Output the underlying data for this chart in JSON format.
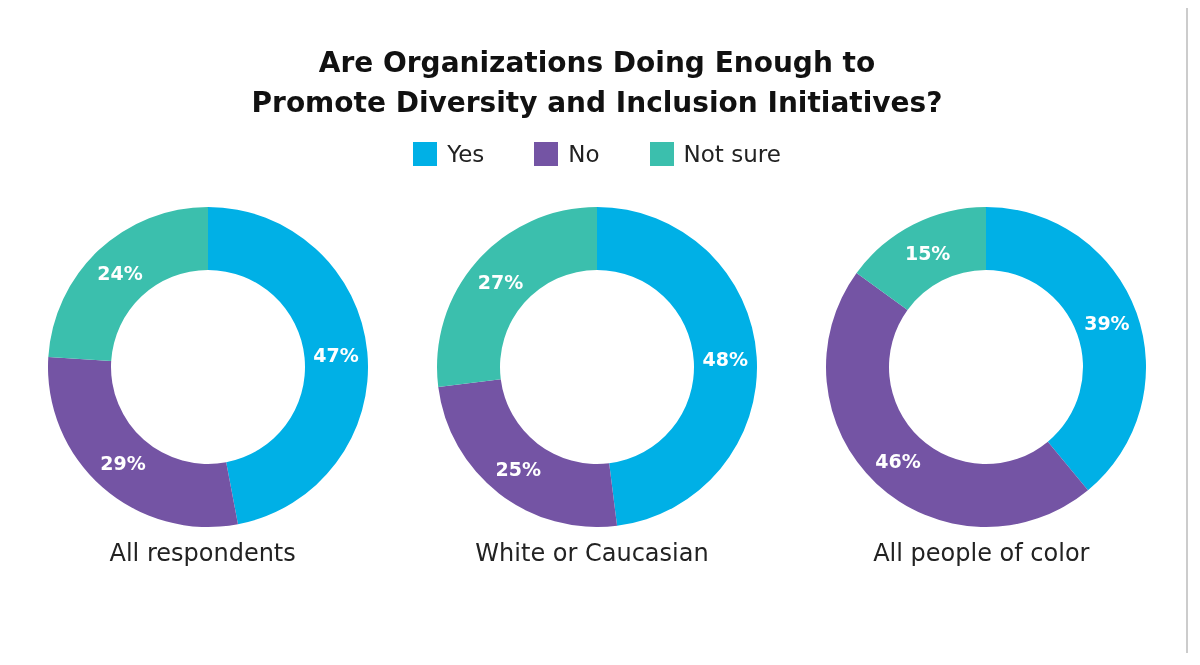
{
  "chart_data": [
    {
      "type": "donut",
      "title": "Are Organizations Doing Enough to\nPromote Diversity and Inclusion Initiatives?",
      "legend": "top",
      "categories": [
        "Yes",
        "No",
        "Not sure"
      ],
      "values": [
        47,
        29,
        24
      ],
      "value_labels": [
        "47%",
        "29%",
        "24%"
      ],
      "colors": [
        "#00b0e6",
        "#7454a4",
        "#3bbfad"
      ],
      "xlabel": "All respondents"
    },
    {
      "type": "donut",
      "categories": [
        null,
        null,
        null
      ],
      "values": [
        48,
        25,
        27
      ],
      "value_labels": [
        "48%",
        "25%",
        "27%"
      ],
      "colors": [
        "#00b0e6",
        "#7454a4",
        "#3bbfad"
      ],
      "xlabel": "White or Caucasian"
    },
    {
      "type": "donut",
      "categories": [
        null,
        null,
        null
      ],
      "values": [
        39,
        46,
        15
      ],
      "value_labels": [
        "39%",
        "46%",
        "15%"
      ],
      "colors": [
        "#00b0e6",
        "#7454a4",
        "#3bbfad"
      ],
      "xlabel": "All people of color"
    }
  ]
}
